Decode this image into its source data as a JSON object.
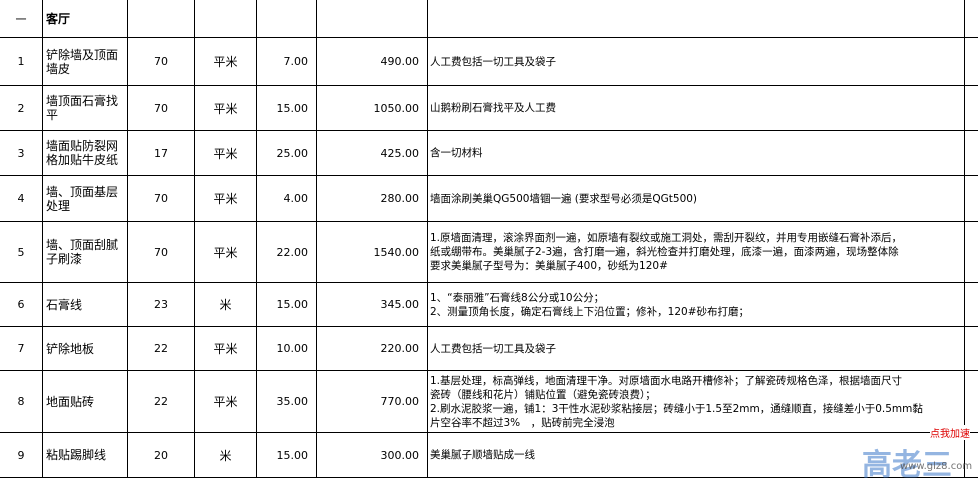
{
  "header": {
    "number": "一",
    "title": "客厅"
  },
  "rows": [
    {
      "no": "1",
      "item": "铲除墙及顶面墙皮",
      "qty": "70",
      "unit": "平米",
      "price": "7.00",
      "total": "490.00",
      "remarks": [
        "人工费包括一切工具及袋子"
      ]
    },
    {
      "no": "2",
      "item": "墙顶面石膏找平",
      "qty": "70",
      "unit": "平米",
      "price": "15.00",
      "total": "1050.00",
      "remarks": [
        "山鹅粉刷石膏找平及人工费"
      ]
    },
    {
      "no": "3",
      "item": "墙面贴防裂网格加贴牛皮纸",
      "qty": "17",
      "unit": "平米",
      "price": "25.00",
      "total": "425.00",
      "remarks": [
        "含一切材料"
      ]
    },
    {
      "no": "4",
      "item": "墙、顶面基层处理",
      "qty": "70",
      "unit": "平米",
      "price": "4.00",
      "total": "280.00",
      "remarks": [
        "墙面涂刷美巢QG500墙锢一遍 (要求型号必须是QGt500)"
      ]
    },
    {
      "no": "5",
      "item": "墙、顶面刮腻子刷漆",
      "qty": "70",
      "unit": "平米",
      "price": "22.00",
      "total": "1540.00",
      "remarks": [
        "1.原墙面清理，滚涂界面剂一遍，如原墙有裂纹或施工洞处，需刮开裂纹，并用专用嵌缝石膏补添后，",
        "纸或绷带布。美巢腻子2-3遍，含打磨一遍，斜光检查并打磨处理，底漆一遍，面漆两遍，现场整体除",
        "要求美巢腻子型号为：美巢腻子400，砂纸为120#"
      ]
    },
    {
      "no": "6",
      "item": "石膏线",
      "qty": "23",
      "unit": "米",
      "price": "15.00",
      "total": "345.00",
      "remarks": [
        "1、“泰丽雅”石膏线8公分或10公分；",
        "2、测量顶角长度，确定石膏线上下沿位置；修补，120#砂布打磨；"
      ]
    },
    {
      "no": "7",
      "item": "铲除地板",
      "qty": "22",
      "unit": "平米",
      "price": "10.00",
      "total": "220.00",
      "remarks": [
        "人工费包括一切工具及袋子"
      ]
    },
    {
      "no": "8",
      "item": "地面贴砖",
      "qty": "22",
      "unit": "平米",
      "price": "35.00",
      "total": "770.00",
      "remarks": [
        "1.基层处理，标高弹线，地面清理干净。对原墙面水电路开槽修补；了解瓷砖规格色泽，根据墙面尺寸",
        "瓷砖（腰线和花片）铺贴位置（避免瓷砖浪费）；",
        "2.刷水泥胶浆一遍，铺1：3干性水泥砂浆粘接层；砖缝小于1.5至2mm，通缝顺直，接缝差小于0.5mm黏",
        "片空谷率不超过3%　，贴砖前完全浸泡"
      ]
    },
    {
      "no": "9",
      "item": "粘贴踢脚线",
      "qty": "20",
      "unit": "米",
      "price": "15.00",
      "total": "300.00",
      "remarks": [
        "美巢腻子顺墙贴成一线"
      ]
    }
  ],
  "watermark": {
    "badge": "点我加速",
    "logo": "高老三",
    "url": "www.glz8.com"
  }
}
